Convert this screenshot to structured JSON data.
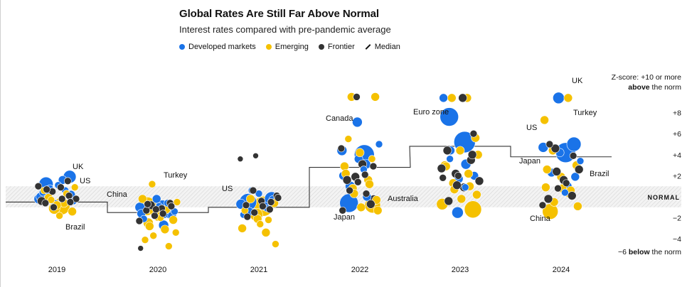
{
  "title": "Global Rates Are Still Far Above Normal",
  "subtitle": "Interest rates compared with pre-pandemic average",
  "legend": [
    {
      "label": "Developed markets",
      "color": "#1a73e8"
    },
    {
      "label": "Emerging",
      "color": "#f5c100"
    },
    {
      "label": "Frontier",
      "color": "#333333"
    },
    {
      "label": "Median",
      "icon": "slash-line-icon"
    }
  ],
  "scale_top": {
    "prefix": "Z-score: +10 or more",
    "strong": "above",
    "suffix": " the norm"
  },
  "scale_bottom": {
    "prefix": "−6 ",
    "strong": "below",
    "suffix": " the norm"
  },
  "normal_label": "NORMAL",
  "colors": {
    "developed": "#1a73e8",
    "emerging": "#f5c100",
    "frontier": "#333333",
    "band": "#e4e4e4"
  },
  "chart_data": {
    "type": "scatter",
    "title": "Global Rates Are Still Far Above Normal",
    "subtitle": "Interest rates compared with pre-pandemic average",
    "x_categories": [
      "2019",
      "2020",
      "2021",
      "2022",
      "2023",
      "2024"
    ],
    "y_ticks": [
      "+8",
      "+6",
      "+4",
      "+2",
      "−2",
      "−4"
    ],
    "y_tick_values": [
      8,
      6,
      4,
      2,
      -2,
      -4
    ],
    "ylim": [
      -6,
      10
    ],
    "normal_band": [
      -1,
      1
    ],
    "median": [
      -0.5,
      -1.5,
      -1.0,
      2.8,
      4.8,
      3.8
    ],
    "annotations": [
      {
        "label": "UK",
        "year": "2019"
      },
      {
        "label": "US",
        "year": "2019"
      },
      {
        "label": "Brazil",
        "year": "2019"
      },
      {
        "label": "China",
        "year": "2020"
      },
      {
        "label": "Turkey",
        "year": "2020"
      },
      {
        "label": "US",
        "year": "2021"
      },
      {
        "label": "Canada",
        "year": "2022"
      },
      {
        "label": "Australia",
        "year": "2022"
      },
      {
        "label": "Japan",
        "year": "2022"
      },
      {
        "label": "Euro zone",
        "year": "2023"
      },
      {
        "label": "UK",
        "year": "2024"
      },
      {
        "label": "Turkey",
        "year": "2024"
      },
      {
        "label": "US",
        "year": "2024"
      },
      {
        "label": "Japan",
        "year": "2024"
      },
      {
        "label": "Brazil",
        "year": "2024"
      },
      {
        "label": "China",
        "year": "2024"
      }
    ],
    "series": [
      {
        "name": "Developed markets",
        "points": [
          [
            "2019",
            1.2,
            10
          ],
          [
            "2019",
            1.6,
            6
          ],
          [
            "2019",
            1.9,
            9
          ],
          [
            "2019",
            0.6,
            5
          ],
          [
            "2019",
            0.3,
            6
          ],
          [
            "2019",
            -0.2,
            7
          ],
          [
            "2019",
            0.8,
            5
          ],
          [
            "2019",
            -0.4,
            5
          ],
          [
            "2019",
            0.2,
            6
          ],
          [
            "2019",
            1.1,
            5
          ],
          [
            "2019",
            -0.7,
            6
          ],
          [
            "2019",
            0.4,
            5
          ],
          [
            "2019",
            0.0,
            6
          ],
          [
            "2020",
            -1.2,
            13
          ],
          [
            "2020",
            -1.0,
            7
          ],
          [
            "2020",
            -1.5,
            9
          ],
          [
            "2020",
            -2.7,
            7
          ],
          [
            "2020",
            -1.8,
            6
          ],
          [
            "2020",
            -0.2,
            6
          ],
          [
            "2020",
            -1.4,
            5
          ],
          [
            "2020",
            -0.9,
            5
          ],
          [
            "2020",
            -2.1,
            5
          ],
          [
            "2020",
            -0.6,
            5
          ],
          [
            "2020",
            -1.6,
            6
          ],
          [
            "2021",
            -0.5,
            12
          ],
          [
            "2021",
            -0.2,
            10
          ],
          [
            "2021",
            -0.7,
            7
          ],
          [
            "2021",
            -0.9,
            6
          ],
          [
            "2021",
            -1.4,
            6
          ],
          [
            "2021",
            0.3,
            5
          ],
          [
            "2021",
            -1.7,
            5
          ],
          [
            "2021",
            -0.3,
            6
          ],
          [
            "2021",
            -1.1,
            5
          ],
          [
            "2021",
            0.6,
            5
          ],
          [
            "2022",
            7.1,
            7
          ],
          [
            "2022",
            4.0,
            14
          ],
          [
            "2022",
            4.4,
            7
          ],
          [
            "2022",
            3.1,
            7
          ],
          [
            "2022",
            3.6,
            6
          ],
          [
            "2022",
            1.0,
            7
          ],
          [
            "2022",
            -0.6,
            13
          ],
          [
            "2022",
            2.0,
            6
          ],
          [
            "2022",
            5.0,
            5
          ],
          [
            "2022",
            0.0,
            6
          ],
          [
            "2022",
            2.6,
            5
          ],
          [
            "2023",
            7.6,
            13
          ],
          [
            "2023",
            5.2,
            15
          ],
          [
            "2023",
            4.4,
            6
          ],
          [
            "2023",
            3.1,
            7
          ],
          [
            "2023",
            2.0,
            6
          ],
          [
            "2023",
            -1.5,
            8
          ],
          [
            "2023",
            0.9,
            5
          ],
          [
            "2023",
            1.7,
            6
          ],
          [
            "2023",
            3.6,
            5
          ],
          [
            "2023",
            9.4,
            6
          ],
          [
            "2024",
            9.4,
            8
          ],
          [
            "2024",
            4.2,
            14
          ],
          [
            "2024",
            5.0,
            10
          ],
          [
            "2024",
            4.7,
            7
          ],
          [
            "2024",
            2.3,
            6
          ],
          [
            "2024",
            1.0,
            7
          ],
          [
            "2024",
            1.9,
            6
          ],
          [
            "2024",
            4.2,
            6
          ],
          [
            "2024",
            3.4,
            5
          ],
          [
            "2024",
            0.4,
            5
          ]
        ]
      },
      {
        "name": "Emerging",
        "points": [
          [
            "2019",
            -0.9,
            12
          ],
          [
            "2019",
            -1.1,
            8
          ],
          [
            "2019",
            -0.6,
            6
          ],
          [
            "2019",
            -0.1,
            6
          ],
          [
            "2019",
            0.3,
            5
          ],
          [
            "2019",
            -1.4,
            6
          ],
          [
            "2019",
            -0.3,
            5
          ],
          [
            "2019",
            0.9,
            5
          ],
          [
            "2019",
            -1.8,
            5
          ],
          [
            "2019",
            0.6,
            5
          ],
          [
            "2019",
            -0.8,
            6
          ],
          [
            "2020",
            1.2,
            5
          ],
          [
            "2020",
            -0.9,
            13
          ],
          [
            "2020",
            -1.4,
            8
          ],
          [
            "2020",
            -2.5,
            7
          ],
          [
            "2020",
            -3.1,
            6
          ],
          [
            "2020",
            -2.8,
            6
          ],
          [
            "2020",
            -2.2,
            6
          ],
          [
            "2020",
            -1.9,
            6
          ],
          [
            "2020",
            -3.4,
            5
          ],
          [
            "2020",
            -0.2,
            6
          ],
          [
            "2020",
            -1.2,
            6
          ],
          [
            "2020",
            -2.0,
            5
          ],
          [
            "2020",
            -4.1,
            5
          ],
          [
            "2020",
            -4.7,
            5
          ],
          [
            "2020",
            -3.7,
            5
          ],
          [
            "2020",
            -0.5,
            5
          ],
          [
            "2021",
            -0.9,
            14
          ],
          [
            "2021",
            -1.7,
            9
          ],
          [
            "2021",
            -2.1,
            6
          ],
          [
            "2021",
            -3.0,
            6
          ],
          [
            "2021",
            -3.4,
            6
          ],
          [
            "2021",
            -4.5,
            5
          ],
          [
            "2021",
            -2.6,
            5
          ],
          [
            "2021",
            -0.2,
            6
          ],
          [
            "2021",
            -1.3,
            5
          ],
          [
            "2021",
            -2.2,
            5
          ],
          [
            "2021",
            -0.6,
            6
          ],
          [
            "2022",
            -0.8,
            11
          ],
          [
            "2022",
            9.5,
            6
          ],
          [
            "2022",
            9.5,
            6
          ],
          [
            "2022",
            5.5,
            5
          ],
          [
            "2022",
            4.2,
            6
          ],
          [
            "2022",
            2.9,
            6
          ],
          [
            "2022",
            1.6,
            6
          ],
          [
            "2022",
            0.8,
            6
          ],
          [
            "2022",
            -0.3,
            6
          ],
          [
            "2022",
            -1.0,
            6
          ],
          [
            "2022",
            2.2,
            6
          ],
          [
            "2022",
            3.6,
            5
          ],
          [
            "2022",
            1.2,
            6
          ],
          [
            "2022",
            0.3,
            6
          ],
          [
            "2022",
            -1.3,
            6
          ],
          [
            "2023",
            -1.2,
            12
          ],
          [
            "2023",
            -0.7,
            8
          ],
          [
            "2023",
            9.4,
            6
          ],
          [
            "2023",
            9.4,
            6
          ],
          [
            "2023",
            5.6,
            6
          ],
          [
            "2023",
            4.4,
            6
          ],
          [
            "2023",
            3.0,
            6
          ],
          [
            "2023",
            2.2,
            6
          ],
          [
            "2023",
            1.3,
            6
          ],
          [
            "2023",
            0.2,
            6
          ],
          [
            "2023",
            -0.2,
            6
          ],
          [
            "2023",
            2.9,
            6
          ],
          [
            "2023",
            1.0,
            6
          ],
          [
            "2023",
            0.7,
            6
          ],
          [
            "2023",
            4.0,
            6
          ],
          [
            "2024",
            -1.4,
            11
          ],
          [
            "2024",
            7.3,
            6
          ],
          [
            "2024",
            9.4,
            6
          ],
          [
            "2024",
            4.4,
            6
          ],
          [
            "2024",
            3.0,
            6
          ],
          [
            "2024",
            1.9,
            6
          ],
          [
            "2024",
            0.9,
            6
          ],
          [
            "2024",
            0.3,
            6
          ],
          [
            "2024",
            -0.5,
            6
          ],
          [
            "2024",
            -0.9,
            6
          ],
          [
            "2024",
            0.8,
            6
          ],
          [
            "2024",
            2.6,
            6
          ],
          [
            "2024",
            0.6,
            6
          ]
        ]
      },
      {
        "name": "Frontier",
        "points": [
          [
            "2019",
            1.5,
            5
          ],
          [
            "2019",
            0.5,
            5
          ],
          [
            "2019",
            -0.4,
            6
          ],
          [
            "2019",
            -0.2,
            5
          ],
          [
            "2019",
            0.9,
            5
          ],
          [
            "2019",
            -0.6,
            5
          ],
          [
            "2019",
            0.1,
            5
          ],
          [
            "2019",
            -1.0,
            5
          ],
          [
            "2019",
            1.0,
            5
          ],
          [
            "2019",
            -0.2,
            5
          ],
          [
            "2019",
            0.7,
            5
          ],
          [
            "2019",
            -0.5,
            5
          ],
          [
            "2020",
            -0.8,
            6
          ],
          [
            "2020",
            -1.1,
            5
          ],
          [
            "2020",
            -1.3,
            5
          ],
          [
            "2020",
            -0.6,
            5
          ],
          [
            "2020",
            -1.8,
            5
          ],
          [
            "2020",
            -2.3,
            5
          ],
          [
            "2020",
            -1.6,
            5
          ],
          [
            "2020",
            -0.7,
            5
          ],
          [
            "2020",
            -4.9,
            4
          ],
          [
            "2020",
            -0.9,
            5
          ],
          [
            "2020",
            -1.2,
            5
          ],
          [
            "2021",
            3.9,
            4
          ],
          [
            "2021",
            3.6,
            4
          ],
          [
            "2021",
            0.6,
            5
          ],
          [
            "2021",
            0.1,
            5
          ],
          [
            "2021",
            -0.4,
            5
          ],
          [
            "2021",
            -0.8,
            5
          ],
          [
            "2021",
            -1.2,
            5
          ],
          [
            "2021",
            -1.5,
            5
          ],
          [
            "2021",
            -0.1,
            5
          ],
          [
            "2021",
            -0.9,
            5
          ],
          [
            "2021",
            -1.9,
            5
          ],
          [
            "2021",
            -0.5,
            5
          ],
          [
            "2022",
            9.5,
            5
          ],
          [
            "2022",
            4.6,
            5
          ],
          [
            "2022",
            3.1,
            6
          ],
          [
            "2022",
            2.1,
            5
          ],
          [
            "2022",
            1.6,
            6
          ],
          [
            "2022",
            0.6,
            5
          ],
          [
            "2022",
            -0.3,
            7
          ],
          [
            "2022",
            -0.7,
            6
          ],
          [
            "2022",
            1.9,
            6
          ],
          [
            "2022",
            2.9,
            5
          ],
          [
            "2022",
            1.4,
            5
          ],
          [
            "2022",
            -1.3,
            5
          ],
          [
            "2022",
            0.3,
            5
          ],
          [
            "2023",
            9.4,
            6
          ],
          [
            "2023",
            6.0,
            5
          ],
          [
            "2023",
            4.4,
            6
          ],
          [
            "2023",
            3.5,
            6
          ],
          [
            "2023",
            2.2,
            6
          ],
          [
            "2023",
            1.5,
            6
          ],
          [
            "2023",
            0.9,
            6
          ],
          [
            "2023",
            -0.4,
            6
          ],
          [
            "2023",
            2.0,
            5
          ],
          [
            "2023",
            4.0,
            6
          ],
          [
            "2023",
            1.1,
            6
          ],
          [
            "2023",
            2.7,
            6
          ],
          [
            "2023",
            1.8,
            5
          ],
          [
            "2024",
            4.6,
            6
          ],
          [
            "2024",
            5.0,
            5
          ],
          [
            "2024",
            3.9,
            5
          ],
          [
            "2024",
            2.6,
            6
          ],
          [
            "2024",
            1.6,
            6
          ],
          [
            "2024",
            0.8,
            5
          ],
          [
            "2024",
            -0.2,
            6
          ],
          [
            "2024",
            -0.8,
            5
          ],
          [
            "2024",
            0.1,
            6
          ],
          [
            "2024",
            2.4,
            6
          ],
          [
            "2024",
            1.3,
            5
          ]
        ]
      }
    ]
  }
}
